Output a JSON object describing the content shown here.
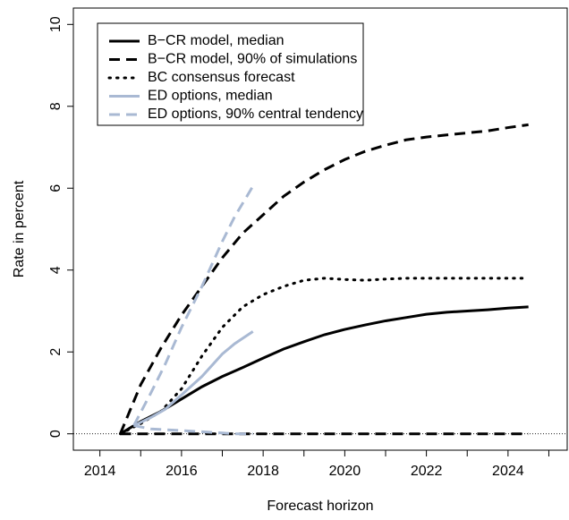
{
  "chart_data": {
    "type": "line",
    "xlabel": "Forecast horizon",
    "ylabel": "Rate in percent",
    "xlim": [
      2013.35,
      2025.45
    ],
    "ylim": [
      -0.4,
      10.4
    ],
    "xticks": [
      2014,
      2016,
      2018,
      2020,
      2022,
      2024
    ],
    "xticks_minor": [
      2015,
      2017,
      2019,
      2021,
      2023,
      2025
    ],
    "yticks": [
      0,
      2,
      4,
      6,
      8,
      10
    ],
    "hline": 0,
    "legend": "top-left",
    "series": [
      {
        "name": "B−CR model, median",
        "color": "#000000",
        "style": "solid",
        "x": [
          2014.5,
          2015,
          2015.5,
          2016,
          2016.5,
          2017,
          2017.5,
          2018,
          2018.5,
          2019,
          2019.5,
          2020,
          2020.5,
          2021,
          2021.5,
          2022,
          2022.5,
          2023,
          2023.5,
          2024,
          2024.5
        ],
        "values": [
          0,
          0.3,
          0.55,
          0.85,
          1.15,
          1.4,
          1.62,
          1.85,
          2.07,
          2.25,
          2.42,
          2.55,
          2.66,
          2.76,
          2.84,
          2.92,
          2.97,
          3.0,
          3.03,
          3.07,
          3.1
        ]
      },
      {
        "name": "B−CR model, 90% of simulations",
        "color": "#000000",
        "style": "dashed",
        "x": [
          2014.5,
          2015,
          2015.5,
          2016,
          2016.5,
          2017,
          2017.5,
          2018,
          2018.5,
          2019,
          2019.5,
          2020,
          2020.5,
          2021,
          2021.5,
          2022,
          2022.5,
          2023,
          2023.5,
          2024,
          2024.5
        ],
        "upper": [
          0,
          1.2,
          2.1,
          2.9,
          3.6,
          4.3,
          4.9,
          5.35,
          5.8,
          6.15,
          6.45,
          6.7,
          6.9,
          7.05,
          7.18,
          7.25,
          7.3,
          7.35,
          7.4,
          7.48,
          7.55
        ],
        "lower": [
          0,
          0,
          0,
          0,
          0,
          0,
          0,
          0,
          0,
          0,
          0,
          0,
          0,
          0,
          0,
          0,
          0,
          0,
          0,
          0,
          0
        ]
      },
      {
        "name": "BC consensus forecast",
        "color": "#000000",
        "style": "dotted",
        "x": [
          2014.5,
          2015,
          2015.5,
          2016,
          2016.5,
          2017,
          2017.5,
          2018,
          2018.5,
          2019,
          2019.5,
          2020,
          2020.5,
          2021,
          2021.5,
          2022,
          2022.5,
          2023,
          2023.5,
          2024,
          2024.45
        ],
        "values": [
          0,
          0.25,
          0.55,
          1.1,
          1.9,
          2.6,
          3.1,
          3.4,
          3.6,
          3.75,
          3.8,
          3.77,
          3.75,
          3.78,
          3.8,
          3.8,
          3.8,
          3.8,
          3.8,
          3.8,
          3.8
        ]
      },
      {
        "name": "ED options, median",
        "color": "#a9b9d3",
        "style": "solid",
        "x": [
          2014.83,
          2015.25,
          2015.6,
          2016,
          2016.5,
          2017,
          2017.3,
          2017.75
        ],
        "values": [
          0.2,
          0.4,
          0.6,
          0.95,
          1.4,
          1.95,
          2.2,
          2.5
        ]
      },
      {
        "name": "ED options, 90% central tendency",
        "color": "#a9b9d3",
        "style": "dashed",
        "x": [
          2014.83,
          2015.25,
          2015.6,
          2016,
          2016.5,
          2017,
          2017.3,
          2017.75
        ],
        "upper": [
          0.2,
          1.0,
          1.7,
          2.6,
          3.6,
          4.7,
          5.3,
          6.05
        ],
        "lower": [
          0.2,
          0.12,
          0.1,
          0.08,
          0.05,
          0.02,
          0,
          0
        ]
      }
    ]
  }
}
